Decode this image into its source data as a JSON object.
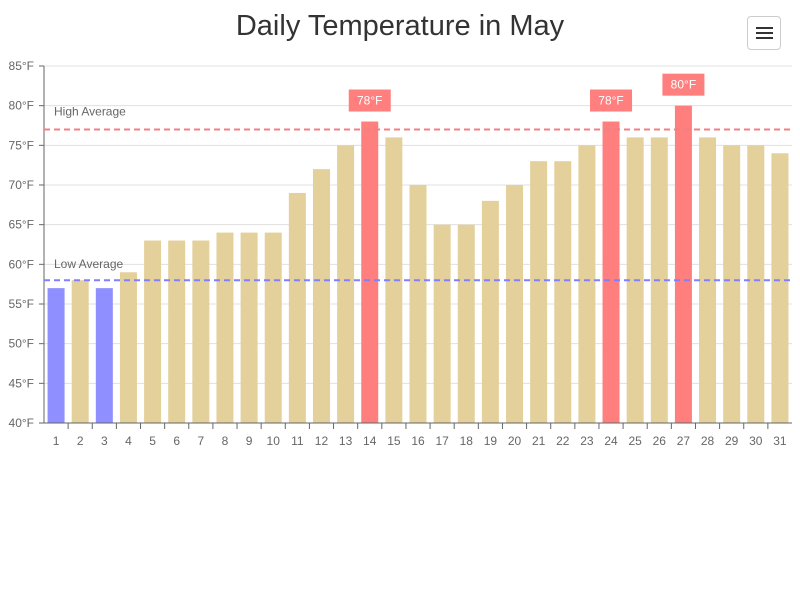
{
  "title": "Daily Temperature in May",
  "menu": {
    "icon": "hamburger-menu-icon"
  },
  "colors": {
    "bar_normal": "#e4d09a",
    "bar_cold": "#8f8fff",
    "bar_hot": "#ff7e7e",
    "high_line": "#f08080",
    "low_line": "#8080ff",
    "grid": "#e0e0e0",
    "axis": "#666666"
  },
  "chart_data": {
    "type": "bar",
    "title": "Daily Temperature in May",
    "xlabel": "",
    "ylabel": "",
    "categories": [
      "1",
      "2",
      "3",
      "4",
      "5",
      "6",
      "7",
      "8",
      "9",
      "10",
      "11",
      "12",
      "13",
      "14",
      "15",
      "16",
      "17",
      "18",
      "19",
      "20",
      "21",
      "22",
      "23",
      "24",
      "25",
      "26",
      "27",
      "28",
      "29",
      "30",
      "31"
    ],
    "values": [
      57,
      58,
      57,
      59,
      63,
      63,
      63,
      64,
      64,
      64,
      69,
      72,
      75,
      78,
      76,
      70,
      65,
      65,
      68,
      70,
      73,
      73,
      75,
      78,
      76,
      76,
      80,
      76,
      75,
      75,
      74
    ],
    "bar_categories": [
      "cold",
      "normal",
      "cold",
      "normal",
      "normal",
      "normal",
      "normal",
      "normal",
      "normal",
      "normal",
      "normal",
      "normal",
      "normal",
      "hot",
      "normal",
      "normal",
      "normal",
      "normal",
      "normal",
      "normal",
      "normal",
      "normal",
      "normal",
      "hot",
      "normal",
      "normal",
      "hot",
      "normal",
      "normal",
      "normal",
      "normal"
    ],
    "ylim": [
      40,
      85
    ],
    "yticks": [
      40,
      45,
      50,
      55,
      60,
      65,
      70,
      75,
      80,
      85
    ],
    "ytick_labels": [
      "40°F",
      "45°F",
      "50°F",
      "55°F",
      "60°F",
      "65°F",
      "70°F",
      "75°F",
      "80°F",
      "85°F"
    ],
    "grid": true,
    "data_labels": [
      {
        "day_index": 13,
        "text": "78°F"
      },
      {
        "day_index": 23,
        "text": "78°F"
      },
      {
        "day_index": 26,
        "text": "80°F"
      }
    ],
    "reference_lines": [
      {
        "name": "high-average",
        "label": "High Average",
        "value": 77,
        "style": "dashed",
        "color_key": "high_line"
      },
      {
        "name": "low-average",
        "label": "Low Average",
        "value": 58,
        "style": "dashed",
        "color_key": "low_line"
      }
    ]
  }
}
